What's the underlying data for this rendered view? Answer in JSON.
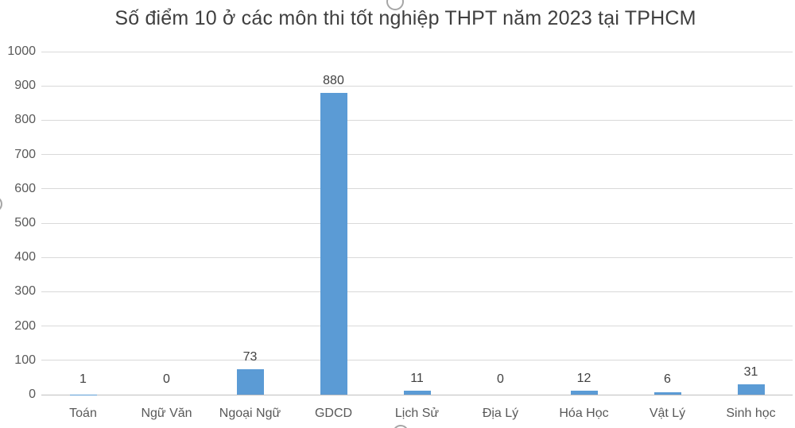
{
  "chart_data": {
    "type": "bar",
    "title": "Số điểm 10 ở các môn thi tốt nghiệp THPT năm 2023 tại TPHCM",
    "categories": [
      "Toán",
      "Ngữ Văn",
      "Ngoại Ngữ",
      "GDCD",
      "Lịch Sử",
      "Địa Lý",
      "Hóa Học",
      "Vật Lý",
      "Sinh học"
    ],
    "values": [
      1,
      0,
      73,
      880,
      11,
      0,
      12,
      6,
      31
    ],
    "data_labels": [
      "1",
      "0",
      "73",
      "880",
      "11",
      "0",
      "12",
      "6",
      "31"
    ],
    "xlabel": "",
    "ylabel": "",
    "ylim": [
      0,
      1000
    ],
    "ytick_step": 100,
    "ytick_labels": [
      "0",
      "100",
      "200",
      "300",
      "400",
      "500",
      "600",
      "700",
      "800",
      "900",
      "1000"
    ],
    "grid": "horizontal-only",
    "legend": "none",
    "colors": {
      "bar": "#5b9bd5",
      "gridline": "#d9d9d9",
      "axis_line": "#bfbfbf",
      "title_text": "#3f3f3f",
      "tick_text": "#595959",
      "data_label_text": "#404040",
      "background": "#ffffff"
    }
  },
  "selection": {
    "handles": [
      {
        "position": "top-center"
      },
      {
        "position": "left-middle"
      },
      {
        "position": "bottom-center"
      }
    ]
  }
}
